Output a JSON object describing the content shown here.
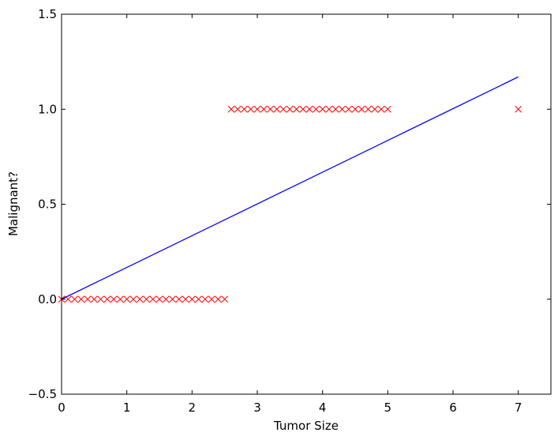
{
  "chart_data": {
    "type": "scatter",
    "title": "",
    "xlabel": "Tumor Size",
    "ylabel": "Malignant?",
    "xlim": [
      0,
      7.5
    ],
    "ylim": [
      -0.5,
      1.5
    ],
    "x_ticks": [
      0,
      1,
      2,
      3,
      4,
      5,
      6,
      7
    ],
    "x_tick_labels": [
      "0",
      "1",
      "2",
      "3",
      "4",
      "5",
      "6",
      "7"
    ],
    "y_ticks": [
      -0.5,
      0.0,
      0.5,
      1.0,
      1.5
    ],
    "y_tick_labels": [
      "−0.5",
      "0.0",
      "0.5",
      "1.0",
      "1.5"
    ],
    "grid": false,
    "series": [
      {
        "kind": "scatter",
        "marker": "x",
        "color": "#ff0000",
        "points": [
          [
            0.0,
            0
          ],
          [
            0.1,
            0
          ],
          [
            0.2,
            0
          ],
          [
            0.3,
            0
          ],
          [
            0.4,
            0
          ],
          [
            0.5,
            0
          ],
          [
            0.6,
            0
          ],
          [
            0.7,
            0
          ],
          [
            0.8,
            0
          ],
          [
            0.9,
            0
          ],
          [
            1.0,
            0
          ],
          [
            1.1,
            0
          ],
          [
            1.2,
            0
          ],
          [
            1.3,
            0
          ],
          [
            1.4,
            0
          ],
          [
            1.5,
            0
          ],
          [
            1.6,
            0
          ],
          [
            1.7,
            0
          ],
          [
            1.8,
            0
          ],
          [
            1.9,
            0
          ],
          [
            2.0,
            0
          ],
          [
            2.1,
            0
          ],
          [
            2.2,
            0
          ],
          [
            2.3,
            0
          ],
          [
            2.4,
            0
          ],
          [
            2.5,
            0
          ],
          [
            2.6,
            1
          ],
          [
            2.7,
            1
          ],
          [
            2.8,
            1
          ],
          [
            2.9,
            1
          ],
          [
            3.0,
            1
          ],
          [
            3.1,
            1
          ],
          [
            3.2,
            1
          ],
          [
            3.3,
            1
          ],
          [
            3.4,
            1
          ],
          [
            3.5,
            1
          ],
          [
            3.6,
            1
          ],
          [
            3.7,
            1
          ],
          [
            3.8,
            1
          ],
          [
            3.9,
            1
          ],
          [
            4.0,
            1
          ],
          [
            4.1,
            1
          ],
          [
            4.2,
            1
          ],
          [
            4.3,
            1
          ],
          [
            4.4,
            1
          ],
          [
            4.5,
            1
          ],
          [
            4.6,
            1
          ],
          [
            4.7,
            1
          ],
          [
            4.8,
            1
          ],
          [
            4.9,
            1
          ],
          [
            5.0,
            1
          ],
          [
            7.0,
            1
          ]
        ]
      },
      {
        "kind": "line",
        "color": "#0000ff",
        "x": [
          0,
          7
        ],
        "y": [
          0,
          1.17
        ]
      }
    ]
  }
}
